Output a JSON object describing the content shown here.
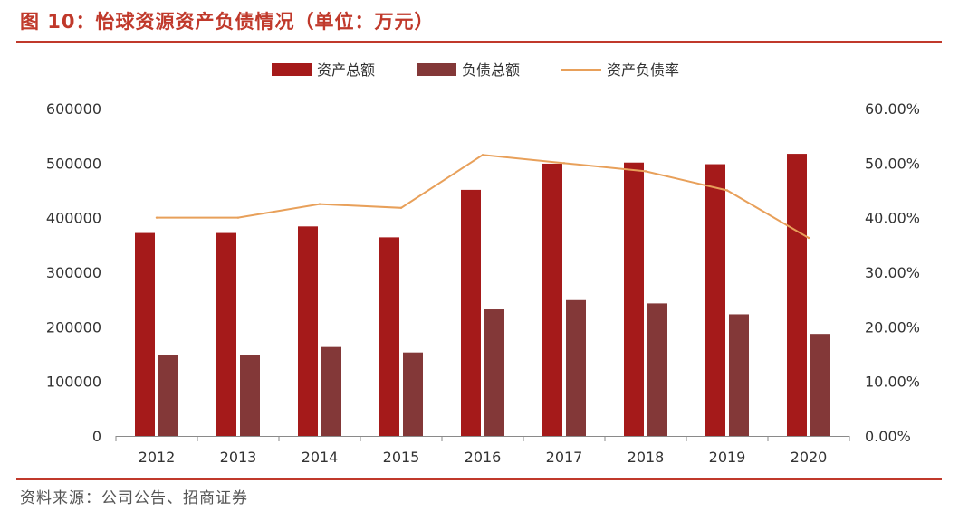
{
  "figure": {
    "title": "图 10：怡球资源资产负债情况（单位：万元）",
    "source": "资料来源：公司公告、招商证券"
  },
  "colors": {
    "accent": "#c0392b",
    "total_assets": "#a51a1a",
    "total_liabilities": "#833838",
    "debt_ratio": "#e8a05a"
  },
  "chart_data": {
    "type": "bar",
    "categories": [
      "2012",
      "2013",
      "2014",
      "2015",
      "2016",
      "2017",
      "2018",
      "2019",
      "2020"
    ],
    "series": [
      {
        "name": "资产总额",
        "type": "bar",
        "axis": "left",
        "values": [
          372000,
          372000,
          384000,
          364000,
          451000,
          499000,
          501000,
          498000,
          517000
        ]
      },
      {
        "name": "负债总额",
        "type": "bar",
        "axis": "left",
        "values": [
          149000,
          149000,
          163000,
          153000,
          232000,
          249000,
          243000,
          223000,
          187000
        ]
      },
      {
        "name": "资产负债率",
        "type": "line",
        "axis": "right",
        "values": [
          40.0,
          40.0,
          42.5,
          41.8,
          51.5,
          50.0,
          48.5,
          45.0,
          36.3
        ]
      }
    ],
    "y_left": {
      "ylim": [
        0,
        600000
      ],
      "ticks": [
        "0",
        "100000",
        "200000",
        "300000",
        "400000",
        "500000",
        "600000"
      ]
    },
    "y_right": {
      "ylim": [
        0,
        60
      ],
      "ticks": [
        "0.00%",
        "10.00%",
        "20.00%",
        "30.00%",
        "40.00%",
        "50.00%",
        "60.00%"
      ]
    },
    "legend": {
      "placement": "top-center"
    },
    "grid": false
  }
}
